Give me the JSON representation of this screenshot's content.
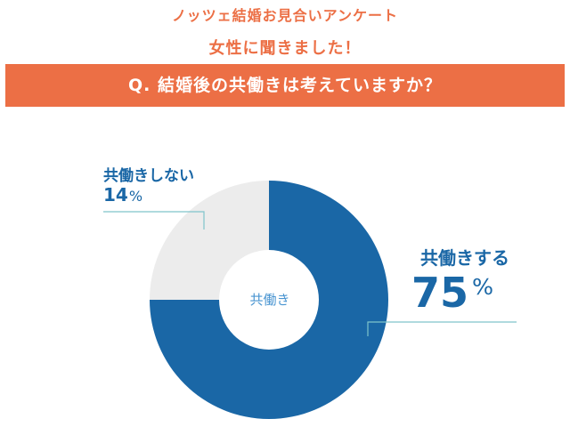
{
  "header": {
    "title": "ノッツェ結婚お見合いアンケート",
    "subtitle": "女性に聞きました！",
    "question": "Q. 結婚後の共働きは考えていますか？"
  },
  "colors": {
    "accent": "#ec6f45",
    "primary": "#1a67a6",
    "rest": "#ececec",
    "leader": "#7fc4cb",
    "center_text": "#4a95d1"
  },
  "chart_data": {
    "type": "pie",
    "title": "Q. 結婚後の共働きは考えていますか？",
    "center_label": "共働き",
    "slices": [
      {
        "label": "共働きする",
        "value": 75,
        "display": "75",
        "unit": "%",
        "color": "#1a67a6"
      },
      {
        "label": "共働きしない",
        "value": 14,
        "display": "14",
        "unit": "%",
        "color": "#ececec"
      }
    ]
  }
}
